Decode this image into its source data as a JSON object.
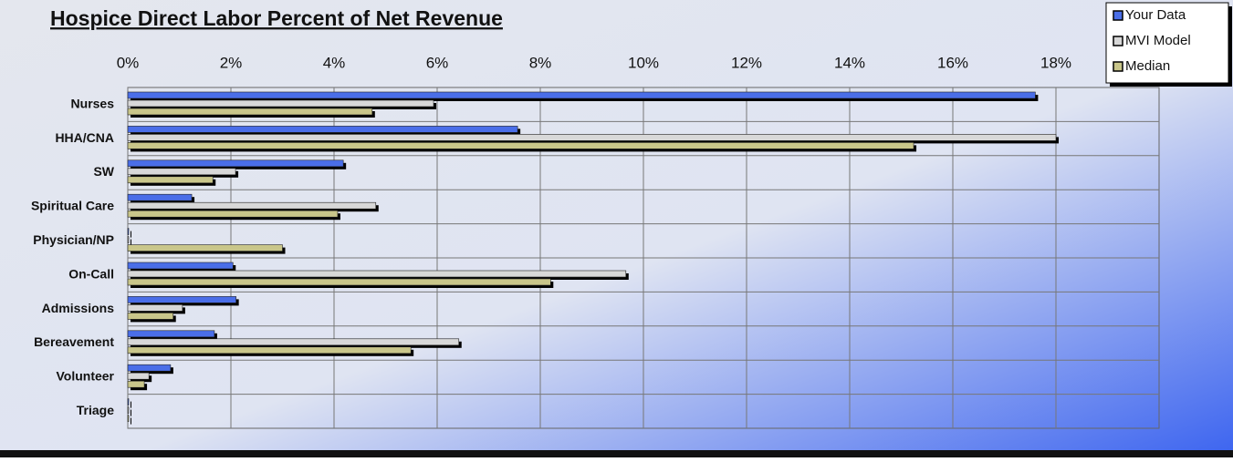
{
  "chart_data": {
    "type": "barh",
    "title": "Hospice Direct Labor Percent of Net Revenue",
    "categories": [
      "Nurses",
      "HHA/CNA",
      "SW",
      "Spiritual Care",
      "Physician/NP",
      "On-Call",
      "Admissions",
      "Bereavement",
      "Volunteer",
      "Triage"
    ],
    "series": [
      {
        "name": "Your Data",
        "color": "#4a6ee8",
        "values": [
          17.6,
          7.56,
          4.18,
          1.24,
          0,
          2.04,
          2.1,
          1.68,
          0.83,
          0
        ]
      },
      {
        "name": "MVI Model",
        "color": "#d8d8d8",
        "values": [
          5.93,
          18.0,
          2.09,
          4.81,
          0,
          9.66,
          1.06,
          6.42,
          0.41,
          0
        ]
      },
      {
        "name": "Median",
        "color": "#c9c68a",
        "values": [
          4.74,
          15.24,
          1.65,
          4.07,
          3.0,
          8.2,
          0.88,
          5.49,
          0.32,
          0
        ]
      }
    ],
    "xlim": [
      0,
      20
    ],
    "xticks": [
      {
        "value": 0,
        "label": "0%"
      },
      {
        "value": 2,
        "label": "2%"
      },
      {
        "value": 4,
        "label": "4%"
      },
      {
        "value": 6,
        "label": "6%"
      },
      {
        "value": 8,
        "label": "8%"
      },
      {
        "value": 10,
        "label": "10%"
      },
      {
        "value": 12,
        "label": "12%"
      },
      {
        "value": 14,
        "label": "14%"
      },
      {
        "value": 16,
        "label": "16%"
      },
      {
        "value": 18,
        "label": "18%"
      }
    ],
    "grid": true,
    "legend": "top-right"
  }
}
